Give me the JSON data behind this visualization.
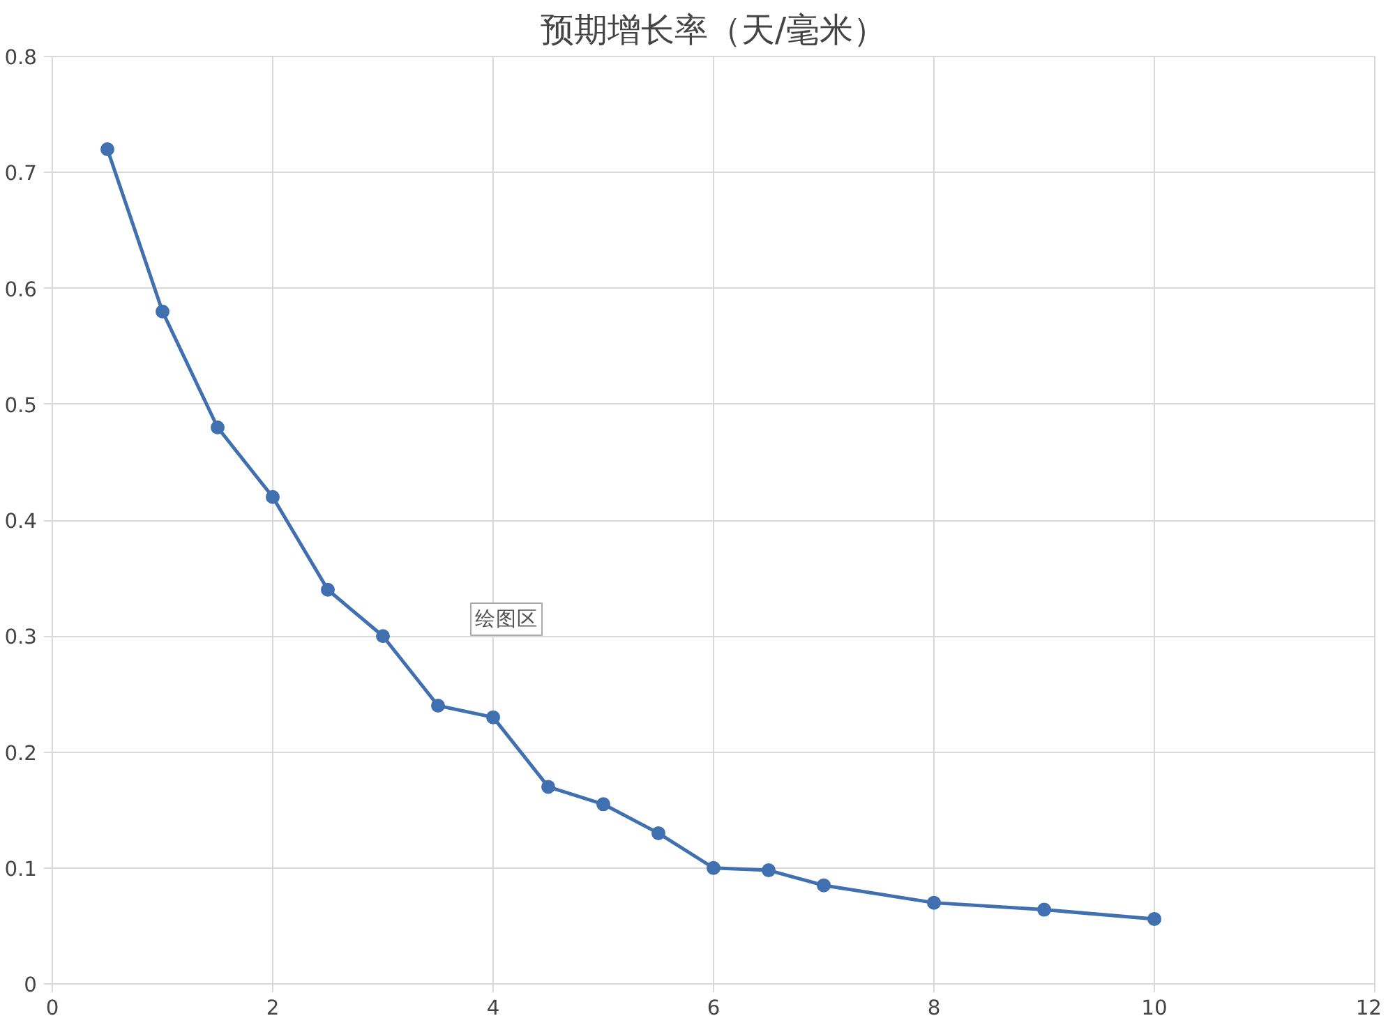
{
  "chart_data": {
    "type": "line",
    "title": "预期增长率（天/毫米）",
    "x": [
      0.5,
      1,
      1.5,
      2,
      2.5,
      3,
      3.5,
      4,
      4.5,
      5,
      5.5,
      6,
      6.5,
      7,
      8,
      9,
      10
    ],
    "series": [
      {
        "color": "#4070b0",
        "values": [
          0.72,
          0.58,
          0.48,
          0.42,
          0.34,
          0.3,
          0.24,
          0.23,
          0.17,
          0.155,
          0.13,
          0.1,
          0.098,
          0.085,
          0.07,
          0.064,
          0.056
        ]
      }
    ],
    "xlim": [
      0,
      12
    ],
    "xticks": [
      0,
      2,
      4,
      6,
      8,
      10,
      12
    ],
    "ylim": [
      0,
      0.8
    ],
    "yticks": [
      0,
      0.1,
      0.2,
      0.3,
      0.4,
      0.5,
      0.6,
      0.7,
      0.8
    ],
    "grid": true,
    "marker": "circle",
    "line_style": "solid",
    "annotations": [
      "绘图区"
    ]
  }
}
